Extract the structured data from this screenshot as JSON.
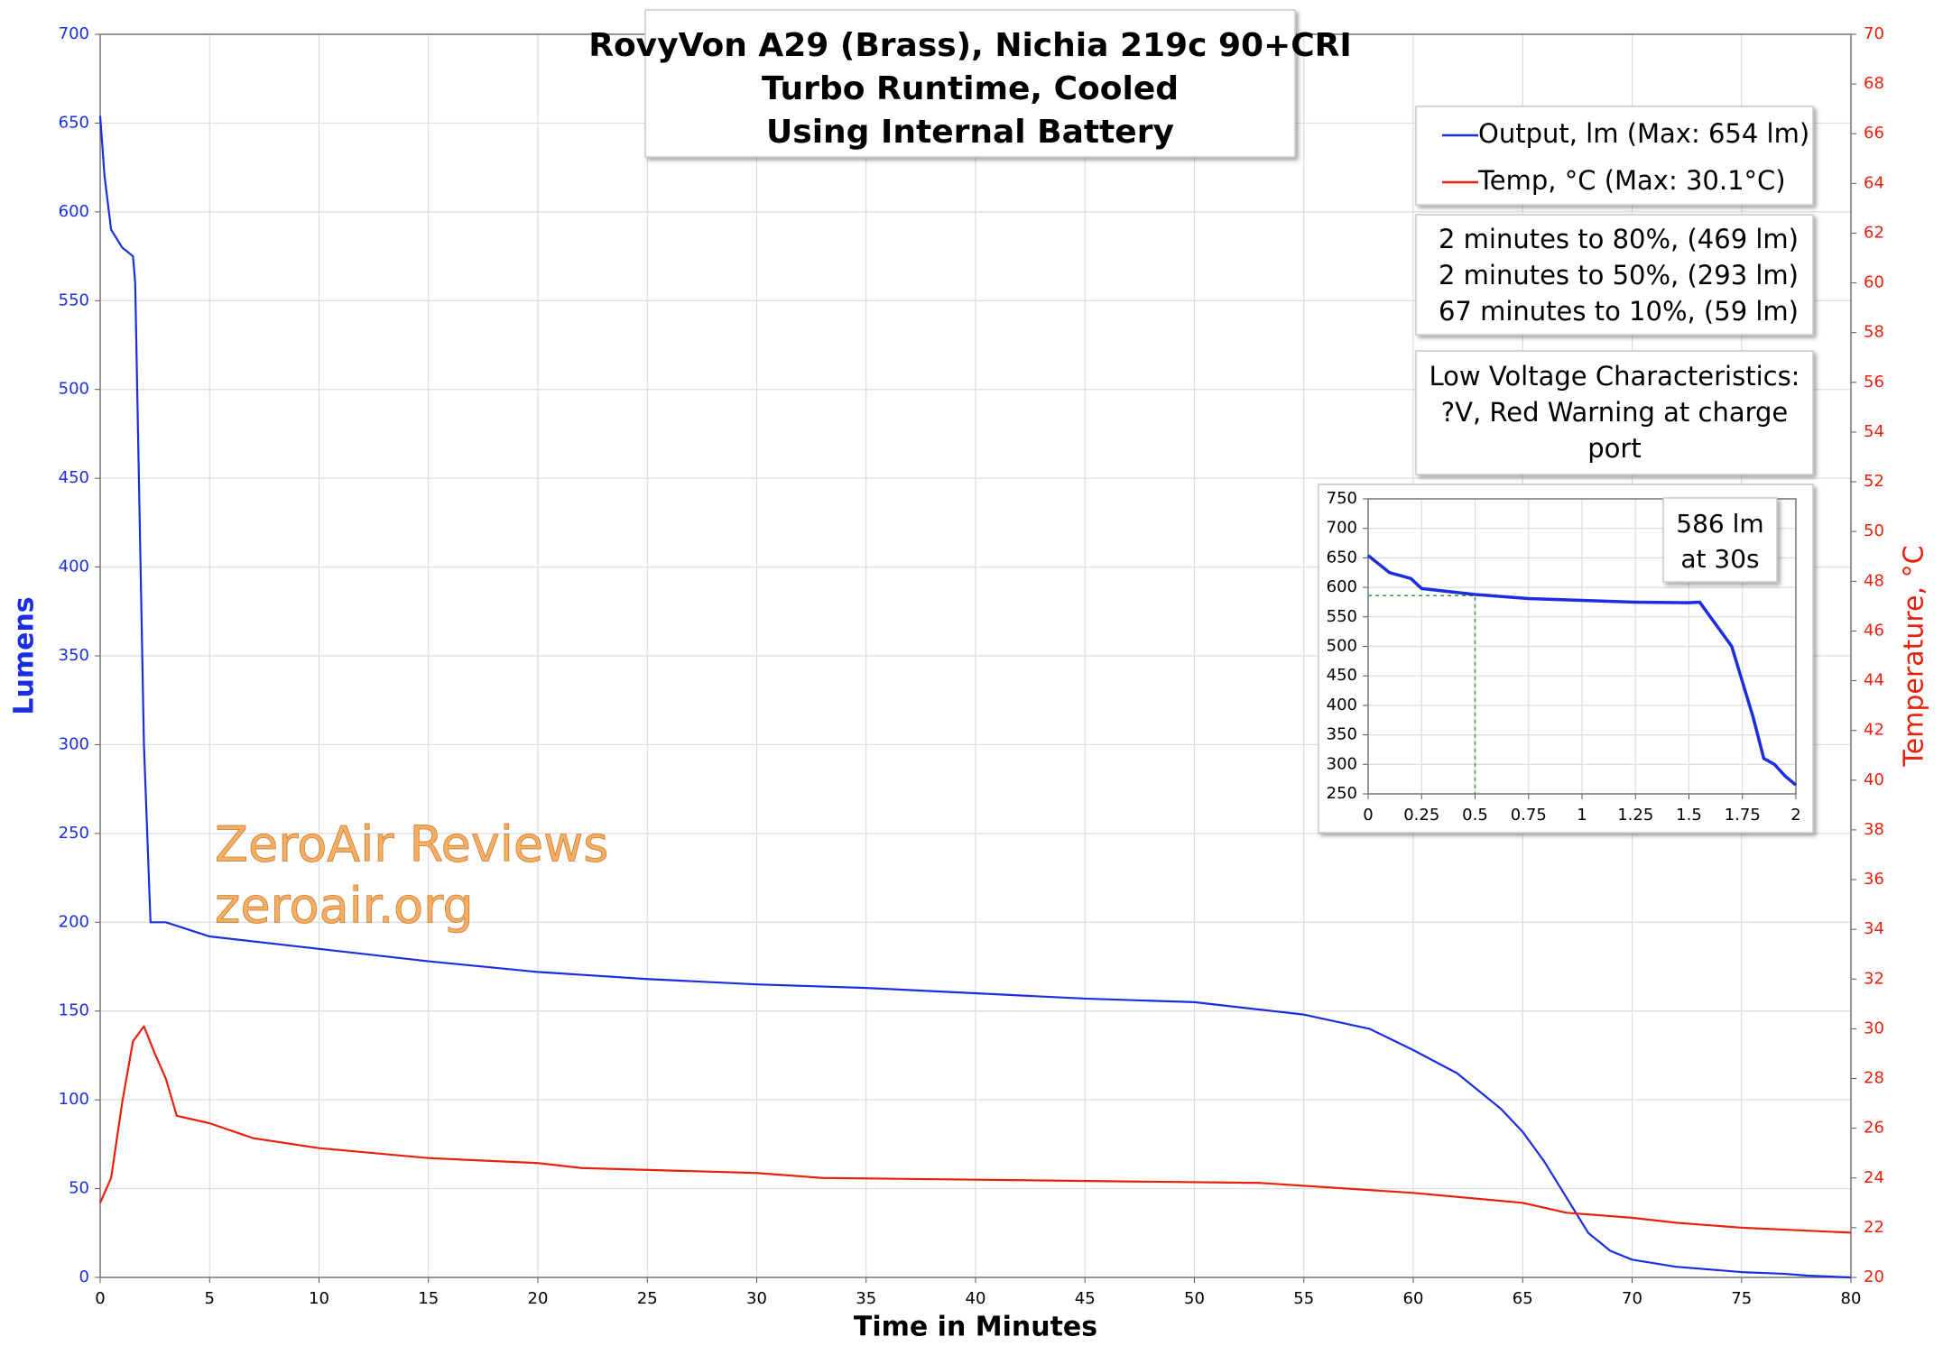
{
  "chart_data": [
    {
      "type": "line",
      "title": [
        "RovyVon A29 (Brass), Nichia 219c 90+CRI",
        "Turbo Runtime, Cooled",
        "Using Internal Battery"
      ],
      "x_label": "Time in Minutes",
      "y_label": "Lumens",
      "y2_label": "Temperature, °C",
      "xlim": [
        0,
        80
      ],
      "xticks": [
        0,
        5,
        10,
        15,
        20,
        25,
        30,
        35,
        40,
        45,
        50,
        55,
        60,
        65,
        70,
        75,
        80
      ],
      "ylim": [
        0,
        700
      ],
      "yticks": [
        0,
        50,
        100,
        150,
        200,
        250,
        300,
        350,
        400,
        450,
        500,
        550,
        600,
        650,
        700
      ],
      "y2lim": [
        20,
        70
      ],
      "y2ticks": [
        20,
        22,
        24,
        26,
        28,
        30,
        32,
        34,
        36,
        38,
        40,
        42,
        44,
        46,
        48,
        50,
        52,
        54,
        56,
        58,
        60,
        62,
        64,
        66,
        68,
        70
      ],
      "grid": true,
      "series": [
        {
          "name": "Output, lm (Max: 654 lm)",
          "color": "#1a2ee0",
          "x": [
            0,
            0.2,
            0.5,
            1,
            1.5,
            1.6,
            1.8,
            2,
            2.3,
            3,
            5,
            10,
            15,
            20,
            25,
            30,
            35,
            40,
            45,
            50,
            55,
            58,
            60,
            62,
            64,
            65,
            66,
            67,
            68,
            69,
            70,
            72,
            75,
            77,
            78,
            80
          ],
          "values": [
            654,
            620,
            590,
            580,
            575,
            560,
            430,
            300,
            200,
            200,
            192,
            185,
            178,
            172,
            168,
            165,
            163,
            160,
            157,
            155,
            148,
            140,
            128,
            115,
            95,
            82,
            65,
            45,
            25,
            15,
            10,
            6,
            3,
            2,
            1,
            0
          ]
        },
        {
          "name": "Temp, °C (Max: 30.1°C)",
          "color": "#e8200c",
          "axis": "y2",
          "x": [
            0,
            0.5,
            1,
            1.5,
            2,
            2.5,
            3,
            3.5,
            5,
            7,
            10,
            15,
            20,
            22,
            30,
            33,
            53,
            60,
            65,
            67,
            70,
            72,
            75,
            80
          ],
          "values": [
            23,
            24,
            27,
            29.5,
            30.1,
            29,
            28,
            26.5,
            26.2,
            25.6,
            25.2,
            24.8,
            24.6,
            24.4,
            24.2,
            24.0,
            23.8,
            23.4,
            23.0,
            22.6,
            22.4,
            22.2,
            22.0,
            21.8
          ]
        }
      ],
      "stats": [
        "2 minutes to 80%, (469 lm)",
        "2 minutes to 50%, (293 lm)",
        "67 minutes to 10%, (59 lm)"
      ],
      "low_voltage": [
        "Low Voltage Characteristics:",
        "?V, Red Warning at charge",
        "port"
      ],
      "watermark": [
        "ZeroAir Reviews",
        "zeroair.org"
      ]
    },
    {
      "type": "line",
      "xlim": [
        0,
        2
      ],
      "xticks": [
        0,
        0.25,
        0.5,
        0.75,
        1,
        1.25,
        1.5,
        1.75,
        2
      ],
      "ylim": [
        250,
        750
      ],
      "yticks": [
        250,
        300,
        350,
        400,
        450,
        500,
        550,
        600,
        650,
        700,
        750
      ],
      "grid": true,
      "series": [
        {
          "color": "#1a2ee0",
          "x": [
            0,
            0.1,
            0.2,
            0.25,
            0.5,
            0.75,
            1,
            1.25,
            1.5,
            1.55,
            1.6,
            1.7,
            1.75,
            1.8,
            1.85,
            1.9,
            1.95,
            2
          ],
          "values": [
            654,
            625,
            615,
            598,
            588,
            581,
            578,
            575,
            574,
            575,
            550,
            500,
            440,
            380,
            310,
            300,
            280,
            265
          ]
        }
      ],
      "marker": {
        "x": 0.5,
        "y": 586,
        "color": "#3a9a3a"
      },
      "annotation": [
        "586 lm",
        "at 30s"
      ]
    }
  ]
}
